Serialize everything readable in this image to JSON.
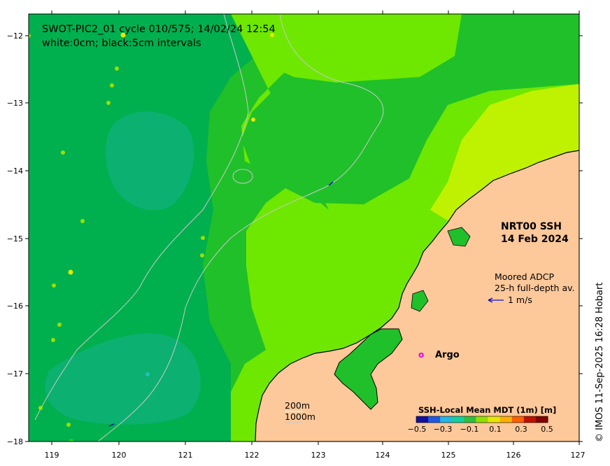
{
  "header": {
    "line1": "SWOT-PIC2_01 cycle 010/575; 14/02/24 12:54",
    "line2": "white:0cm; black:5cm intervals"
  },
  "product": {
    "line1": "NRT00 SSH",
    "line2": "14 Feb 2024"
  },
  "adcp": {
    "line1": "Moored ADCP",
    "line2": "25-h full-depth av.",
    "scale_label": "1 m/s"
  },
  "argo": {
    "marker": "o",
    "label": "Argo"
  },
  "scale_bar": {
    "depth1": "200m",
    "depth2": "1000m"
  },
  "colorbar": {
    "title": "SSH-Local Mean MDT (1m) [m]",
    "ticks": [
      "−0.5",
      "−0.3",
      "−0.1",
      "0.1",
      "0.3",
      "0.5"
    ],
    "colors": [
      "#1010a0",
      "#1e5ae6",
      "#20b8e8",
      "#10d0a0",
      "#30c040",
      "#90e000",
      "#e8e800",
      "#ffb000",
      "#ff6000",
      "#c01000",
      "#800000"
    ]
  },
  "axes": {
    "x_ticks": [
      "119",
      "120",
      "121",
      "122",
      "123",
      "124",
      "125",
      "126",
      "127"
    ],
    "y_ticks": [
      "−12",
      "−13",
      "−14",
      "−15",
      "−16",
      "−17",
      "−18"
    ]
  },
  "credit": "© IMOS 11-Sep-2025 16:28 Hobart",
  "colors": {
    "land": "#fdc89a",
    "field_dark": "#00b050",
    "field_mid": "#20c02a",
    "field_light": "#6ee800",
    "field_yellow": "#bff200",
    "teal": "#0cb070"
  }
}
